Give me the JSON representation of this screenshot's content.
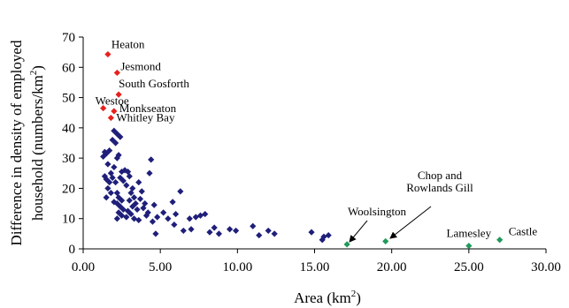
{
  "chart_data": {
    "type": "scatter",
    "xlabel": "Area (km",
    "xlabel_sup": "2",
    "xlabel_end": ")",
    "ylabel_line1": "Difference in density of employed",
    "ylabel_line2": "household (numbers/km",
    "ylabel_sup": "2",
    "ylabel_end": ")",
    "xlim": [
      0,
      30
    ],
    "ylim": [
      0,
      70
    ],
    "x_ticks": [
      "0.00",
      "5.00",
      "10.00",
      "15.00",
      "20.00",
      "25.00",
      "30.00"
    ],
    "x_tick_values": [
      0,
      5,
      10,
      15,
      20,
      25,
      30
    ],
    "y_ticks": [
      "0",
      "10",
      "20",
      "30",
      "40",
      "50",
      "60",
      "70"
    ],
    "y_tick_values": [
      0,
      10,
      20,
      30,
      40,
      50,
      60,
      70
    ],
    "grid": false,
    "colors": {
      "red": "#e8211c",
      "blue": "#1f1f7a",
      "green": "#1f9a5a"
    },
    "series": [
      {
        "color": "red",
        "points": [
          {
            "x": 1.6,
            "y": 64.3,
            "label": "Heaton"
          },
          {
            "x": 2.2,
            "y": 58.2,
            "label": "Jesmond"
          },
          {
            "x": 2.3,
            "y": 51.0,
            "label": "South Gosforth"
          },
          {
            "x": 1.3,
            "y": 46.5,
            "label": "Westoe"
          },
          {
            "x": 2.0,
            "y": 45.5,
            "label": "Monkseaton"
          },
          {
            "x": 1.8,
            "y": 43.3,
            "label": "Whitley Bay"
          }
        ]
      },
      {
        "color": "blue",
        "points": [
          {
            "x": 1.4,
            "y": 32.0
          },
          {
            "x": 1.5,
            "y": 31.5
          },
          {
            "x": 1.7,
            "y": 32.5
          },
          {
            "x": 1.3,
            "y": 30.5
          },
          {
            "x": 1.6,
            "y": 28.0
          },
          {
            "x": 1.8,
            "y": 25.0
          },
          {
            "x": 1.4,
            "y": 24.0
          },
          {
            "x": 1.5,
            "y": 23.0
          },
          {
            "x": 1.7,
            "y": 22.0
          },
          {
            "x": 1.9,
            "y": 23.5
          },
          {
            "x": 1.6,
            "y": 20.0
          },
          {
            "x": 1.8,
            "y": 18.5
          },
          {
            "x": 1.5,
            "y": 17.0
          },
          {
            "x": 2.0,
            "y": 39.0
          },
          {
            "x": 1.9,
            "y": 36.0
          },
          {
            "x": 2.2,
            "y": 38.0
          },
          {
            "x": 2.4,
            "y": 37.0
          },
          {
            "x": 2.1,
            "y": 35.0
          },
          {
            "x": 2.3,
            "y": 31.0
          },
          {
            "x": 2.2,
            "y": 30.0
          },
          {
            "x": 2.0,
            "y": 27.0
          },
          {
            "x": 2.5,
            "y": 25.5
          },
          {
            "x": 2.4,
            "y": 23.5
          },
          {
            "x": 2.6,
            "y": 22.5
          },
          {
            "x": 2.1,
            "y": 22.0
          },
          {
            "x": 2.2,
            "y": 18.5
          },
          {
            "x": 2.3,
            "y": 17.0
          },
          {
            "x": 2.5,
            "y": 16.0
          },
          {
            "x": 2.2,
            "y": 15.0
          },
          {
            "x": 2.0,
            "y": 15.5
          },
          {
            "x": 2.4,
            "y": 14.0
          },
          {
            "x": 2.6,
            "y": 13.0
          },
          {
            "x": 2.3,
            "y": 12.0
          },
          {
            "x": 2.5,
            "y": 11.0
          },
          {
            "x": 2.8,
            "y": 10.5
          },
          {
            "x": 2.2,
            "y": 10.0
          },
          {
            "x": 2.7,
            "y": 26.0
          },
          {
            "x": 2.9,
            "y": 25.5
          },
          {
            "x": 3.0,
            "y": 24.0
          },
          {
            "x": 2.8,
            "y": 21.0
          },
          {
            "x": 3.2,
            "y": 20.0
          },
          {
            "x": 3.1,
            "y": 18.5
          },
          {
            "x": 3.3,
            "y": 17.0
          },
          {
            "x": 3.0,
            "y": 16.0
          },
          {
            "x": 3.4,
            "y": 15.0
          },
          {
            "x": 3.2,
            "y": 14.0
          },
          {
            "x": 3.5,
            "y": 13.0
          },
          {
            "x": 2.9,
            "y": 12.5
          },
          {
            "x": 3.1,
            "y": 11.5
          },
          {
            "x": 3.3,
            "y": 10.0
          },
          {
            "x": 3.6,
            "y": 22.0
          },
          {
            "x": 3.8,
            "y": 19.0
          },
          {
            "x": 3.7,
            "y": 16.5
          },
          {
            "x": 4.0,
            "y": 15.0
          },
          {
            "x": 3.9,
            "y": 13.5
          },
          {
            "x": 4.2,
            "y": 12.0
          },
          {
            "x": 4.1,
            "y": 11.0
          },
          {
            "x": 3.6,
            "y": 9.5
          },
          {
            "x": 4.4,
            "y": 29.5
          },
          {
            "x": 4.3,
            "y": 25.0
          },
          {
            "x": 4.6,
            "y": 14.5
          },
          {
            "x": 4.8,
            "y": 10.5
          },
          {
            "x": 4.5,
            "y": 9.0
          },
          {
            "x": 4.7,
            "y": 5.0
          },
          {
            "x": 5.2,
            "y": 12.0
          },
          {
            "x": 5.5,
            "y": 10.0
          },
          {
            "x": 5.8,
            "y": 15.5
          },
          {
            "x": 6.0,
            "y": 11.5
          },
          {
            "x": 5.9,
            "y": 8.0
          },
          {
            "x": 6.3,
            "y": 19.0
          },
          {
            "x": 6.5,
            "y": 6.0
          },
          {
            "x": 6.9,
            "y": 10.0
          },
          {
            "x": 7.0,
            "y": 6.5
          },
          {
            "x": 7.3,
            "y": 10.5
          },
          {
            "x": 7.6,
            "y": 11.0
          },
          {
            "x": 7.9,
            "y": 11.5
          },
          {
            "x": 8.2,
            "y": 5.5
          },
          {
            "x": 8.5,
            "y": 7.0
          },
          {
            "x": 8.8,
            "y": 5.0
          },
          {
            "x": 9.5,
            "y": 6.5
          },
          {
            "x": 9.9,
            "y": 6.0
          },
          {
            "x": 11.0,
            "y": 7.5
          },
          {
            "x": 11.4,
            "y": 4.5
          },
          {
            "x": 12.0,
            "y": 6.0
          },
          {
            "x": 12.4,
            "y": 5.0
          },
          {
            "x": 14.8,
            "y": 5.5
          },
          {
            "x": 15.5,
            "y": 3.0
          },
          {
            "x": 15.6,
            "y": 4.0
          },
          {
            "x": 15.9,
            "y": 4.5
          }
        ]
      },
      {
        "color": "green",
        "points": [
          {
            "x": 17.1,
            "y": 1.5,
            "label": "Woolsington"
          },
          {
            "x": 19.6,
            "y": 2.5,
            "label": "Chop and Rowlands Gill"
          },
          {
            "x": 25.0,
            "y": 1.0,
            "label": "Lamesley"
          },
          {
            "x": 27.0,
            "y": 3.0,
            "label": "Castle"
          }
        ]
      }
    ]
  }
}
